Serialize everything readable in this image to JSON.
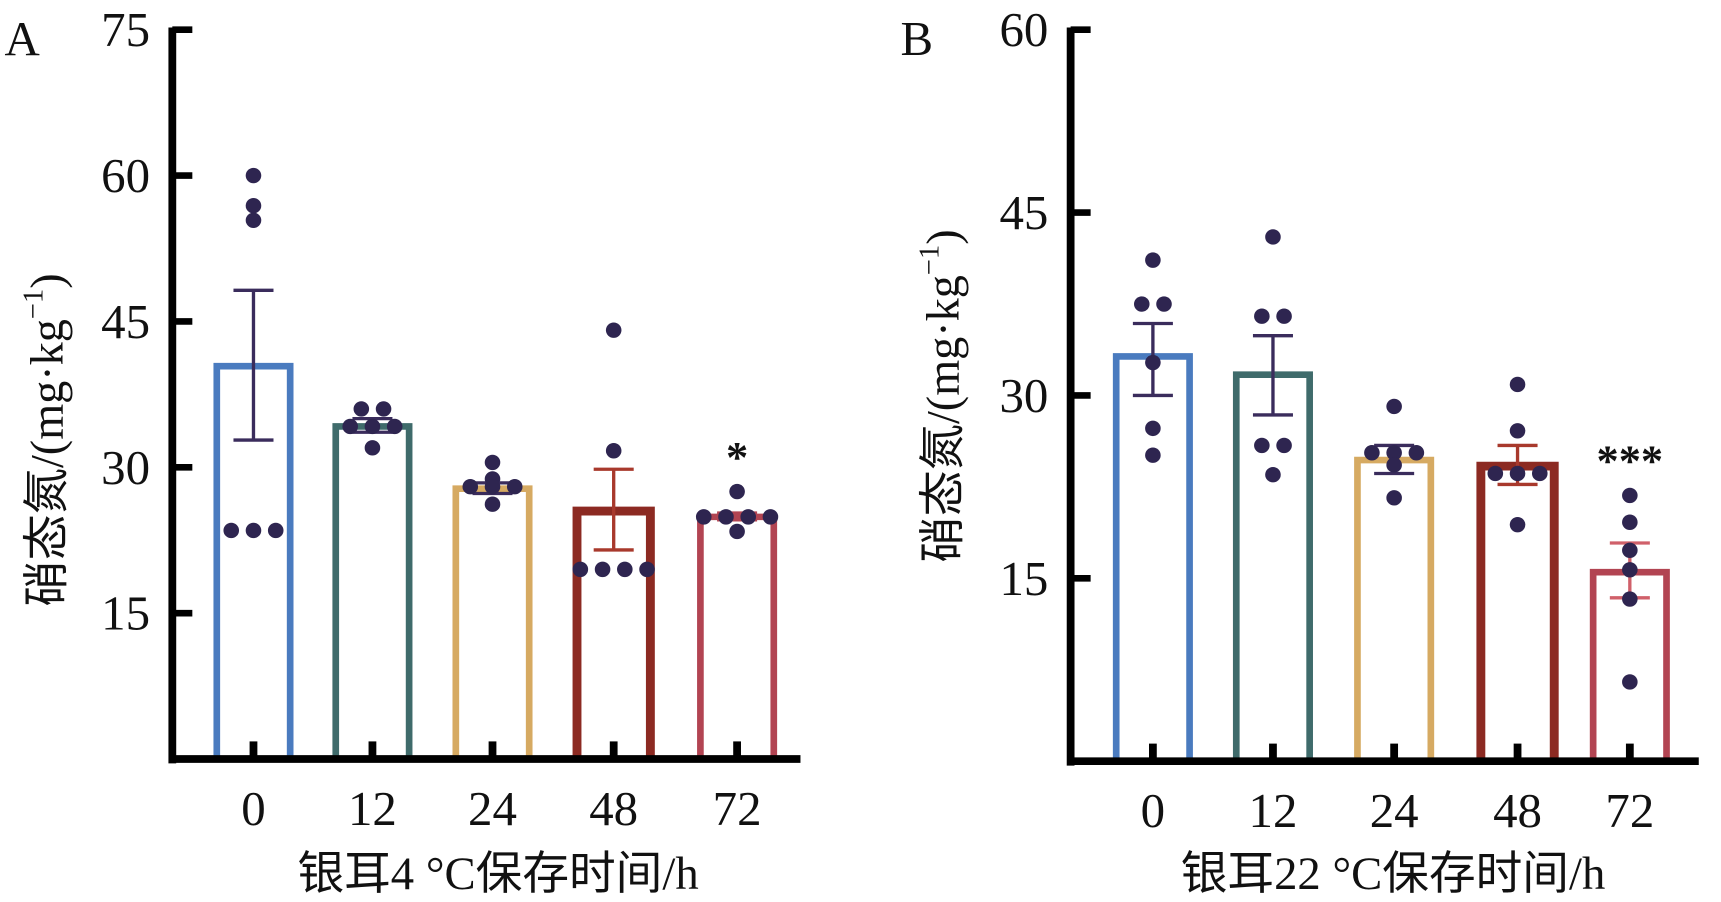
{
  "figure": {
    "panels": [
      "A",
      "B"
    ]
  },
  "chart_data": [
    {
      "type": "bar",
      "panel_label": "A",
      "title": "",
      "xlabel": "银耳4 °C保存时间/h",
      "ylabel": "硝态氮/(mg·kg⁻¹)",
      "ylabel_parts": {
        "main": "硝态氮/(mg·kg",
        "sup": "−1",
        "close": ")"
      },
      "categories": [
        "0",
        "12",
        "24",
        "48",
        "72"
      ],
      "ylim": [
        0,
        75
      ],
      "yticks": [
        15,
        30,
        45,
        60,
        75
      ],
      "ytick_labels": [
        "15",
        "30",
        "45",
        "60",
        "75"
      ],
      "grid": false,
      "legend": "none",
      "bar_colors": [
        "#4a7bbf",
        "#3f6b6b",
        "#d6aa62",
        "#8c2a22",
        "#b24452"
      ],
      "errorbar_colors": [
        "#3a2c5c",
        "#3a2c5c",
        "#3a2c5c",
        "#a8392c",
        "#b24452"
      ],
      "point_color": "#2e2550",
      "values": [
        40.4,
        34.2,
        27.8,
        25.5,
        24.9
      ],
      "error_low": [
        32.8,
        33.6,
        27.3,
        21.5,
        24.6
      ],
      "error_high": [
        48.2,
        35.0,
        28.4,
        29.8,
        25.3
      ],
      "points": [
        [
          60.0,
          56.9,
          55.4,
          23.5,
          23.5,
          23.5
        ],
        [
          36.0,
          36.0,
          34.2,
          34.2,
          34.2,
          32.0
        ],
        [
          30.5,
          28.8,
          28.0,
          28.0,
          28.0,
          26.2
        ],
        [
          44.1,
          31.7,
          19.5,
          19.5,
          19.5,
          19.5
        ],
        [
          27.5,
          24.9,
          24.9,
          24.9,
          24.9,
          23.4
        ]
      ],
      "significance": [
        "",
        "",
        "",
        "",
        "*"
      ]
    },
    {
      "type": "bar",
      "panel_label": "B",
      "title": "",
      "xlabel": "银耳22 °C保存时间/h",
      "ylabel": "硝态氮/(mg·kg⁻¹)",
      "ylabel_parts": {
        "main": "硝态氮/(mg·kg",
        "sup": "−1",
        "close": ")"
      },
      "categories": [
        "0",
        "12",
        "24",
        "48",
        "72"
      ],
      "ylim": [
        0,
        60
      ],
      "yticks": [
        15,
        30,
        45,
        60
      ],
      "ytick_labels": [
        "15",
        "30",
        "45",
        "60"
      ],
      "grid": false,
      "legend": "none",
      "bar_colors": [
        "#4a7bbf",
        "#3f6b6b",
        "#d6aa62",
        "#8c2a22",
        "#b24452"
      ],
      "errorbar_colors": [
        "#3a2c5c",
        "#3a2c5c",
        "#3a2c5c",
        "#a8392c",
        "#d0606a"
      ],
      "point_color": "#2e2550",
      "values": [
        33.2,
        31.7,
        24.7,
        24.2,
        15.5
      ],
      "error_low": [
        30.0,
        28.4,
        23.6,
        22.7,
        13.4
      ],
      "error_high": [
        35.9,
        34.9,
        25.9,
        25.9,
        17.9
      ],
      "points": [
        [
          41.1,
          37.5,
          37.5,
          32.7,
          27.3,
          25.1
        ],
        [
          43.0,
          36.5,
          36.5,
          25.9,
          25.9,
          23.5
        ],
        [
          29.1,
          25.3,
          25.3,
          25.3,
          24.3,
          21.6
        ],
        [
          30.9,
          27.1,
          23.6,
          23.6,
          23.6,
          19.4
        ],
        [
          21.8,
          19.6,
          17.3,
          15.7,
          13.3,
          6.5
        ]
      ],
      "significance": [
        "",
        "",
        "",
        "",
        "***"
      ]
    }
  ]
}
